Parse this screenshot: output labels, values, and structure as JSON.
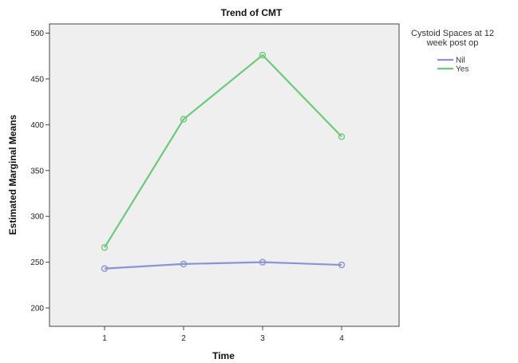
{
  "chart_data": {
    "type": "line",
    "title": "Trend of CMT",
    "xlabel": "Time",
    "ylabel": "Estimated Marginal Means",
    "categories": [
      "1",
      "2",
      "3",
      "4"
    ],
    "ylim": [
      180,
      510
    ],
    "yticks": [
      200,
      250,
      300,
      350,
      400,
      450,
      500
    ],
    "legend_title": "Cystoid Spaces at 12 week post op",
    "legend_title_lines": [
      "Cystoid Spaces at 12",
      "week post op"
    ],
    "legend_position": "right",
    "grid": false,
    "series": [
      {
        "name": "Nil",
        "values": [
          243,
          248,
          250,
          247
        ],
        "color": "#8a93d6"
      },
      {
        "name": "Yes",
        "values": [
          266,
          406,
          476,
          387
        ],
        "color": "#6cc97a"
      }
    ]
  }
}
